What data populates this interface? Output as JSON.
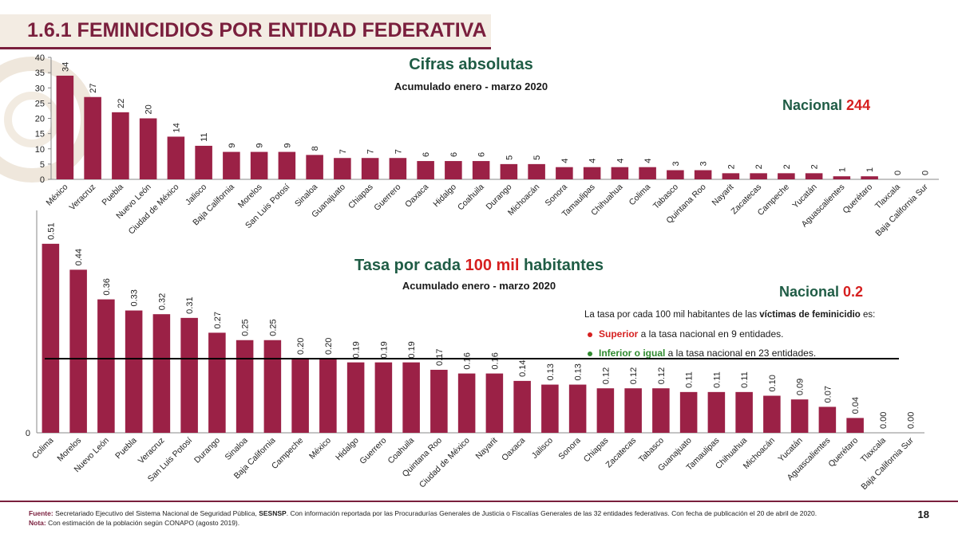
{
  "page": {
    "title": "1.6.1 FEMINICIDIOS POR ENTIDAD FEDERATIVA",
    "page_number": "18",
    "colors": {
      "bar": "#9b2146",
      "title": "#7a1f3d",
      "heading": "#1f5c45",
      "highlight": "#d62020",
      "green": "#2f8a2f"
    }
  },
  "top": {
    "heading": "Cifras absolutas",
    "subtitle": "Acumulado enero - marzo 2020",
    "national_label": "Nacional",
    "national_value": "244"
  },
  "bottom": {
    "heading_a": "Tasa por cada ",
    "heading_b": "100 mil",
    "heading_c": " habitantes",
    "subtitle": "Acumulado enero - marzo 2020",
    "national_label": "Nacional",
    "national_value": "0.2",
    "note_intro_a": "La tasa por cada 100 mil habitantes de las ",
    "note_intro_b": "víctimas de feminicidio",
    "note_intro_c": " es:",
    "note_sup_a": "Superior",
    "note_sup_b": " a la tasa nacional en 9 entidades.",
    "note_inf_a": "Inferior o igual",
    "note_inf_b": " a la tasa nacional en 23 entidades."
  },
  "footer": {
    "fuente_label": "Fuente:",
    "fuente_text_a": " Secretariado Ejecutivo del Sistema Nacional de Seguridad Pública, ",
    "fuente_text_b": "SESNSP",
    "fuente_text_c": ". Con información reportada por las Procuradurías Generales de Justicia o Fiscalías Generales de las 32 entidades federativas. Con fecha de publicación el 20  de abril de 2020.",
    "nota_label": "Nota:",
    "nota_text": " Con estimación de la población según CONAPO (agosto 2019)."
  },
  "chart_data": [
    {
      "type": "bar",
      "title": "Cifras absolutas",
      "subtitle": "Acumulado enero - marzo 2020",
      "categories": [
        "México",
        "Veracruz",
        "Puebla",
        "Nuevo León",
        "Ciudad de México",
        "Jalisco",
        "Baja California",
        "Morelos",
        "San Luis Potosí",
        "Sinaloa",
        "Guanajuato",
        "Chiapas",
        "Guerrero",
        "Oaxaca",
        "Hidalgo",
        "Coahuila",
        "Durango",
        "Michoacán",
        "Sonora",
        "Tamaulipas",
        "Chihuahua",
        "Colima",
        "Tabasco",
        "Quintana Roo",
        "Nayarit",
        "Zacatecas",
        "Campeche",
        "Yucatán",
        "Aguascalientes",
        "Querétaro",
        "Tlaxcala",
        "Baja California Sur"
      ],
      "values": [
        34,
        27,
        22,
        20,
        14,
        11,
        9,
        9,
        9,
        8,
        7,
        7,
        7,
        6,
        6,
        6,
        5,
        5,
        4,
        4,
        4,
        4,
        3,
        3,
        2,
        2,
        2,
        2,
        1,
        1,
        0,
        0
      ],
      "labels": [
        "34",
        "27",
        "22",
        "20",
        "14",
        "11",
        "9",
        "9",
        "9",
        "8",
        "7",
        "7",
        "7",
        "6",
        "6",
        "6",
        "5",
        "5",
        "4",
        "4",
        "4",
        "4",
        "3",
        "3",
        "2",
        "2",
        "2",
        "2",
        "1",
        "1",
        "0",
        "0"
      ],
      "yticks": [
        "0",
        "5",
        "10",
        "15",
        "20",
        "25",
        "30",
        "35",
        "40"
      ],
      "ylim": [
        0,
        40
      ]
    },
    {
      "type": "bar",
      "title": "Tasa por cada 100 mil habitantes",
      "subtitle": "Acumulado enero - marzo 2020",
      "categories": [
        "Colima",
        "Morelos",
        "Nuevo León",
        "Puebla",
        "Veracruz",
        "San Luis Potosí",
        "Durango",
        "Sinaloa",
        "Baja California",
        "Campeche",
        "México",
        "Hidalgo",
        "Guerrero",
        "Coahuila",
        "Quintana Roo",
        "Ciudad de México",
        "Nayarit",
        "Oaxaca",
        "Jalisco",
        "Sonora",
        "Chiapas",
        "Zacatecas",
        "Tabasco",
        "Guanajuato",
        "Tamaulipas",
        "Chihuahua",
        "Michoacán",
        "Yucatán",
        "Aguascalientes",
        "Querétaro",
        "Tlaxcala",
        "Baja California Sur"
      ],
      "values": [
        0.51,
        0.44,
        0.36,
        0.33,
        0.32,
        0.31,
        0.27,
        0.25,
        0.25,
        0.2,
        0.2,
        0.19,
        0.19,
        0.19,
        0.17,
        0.16,
        0.16,
        0.14,
        0.13,
        0.13,
        0.12,
        0.12,
        0.12,
        0.11,
        0.11,
        0.11,
        0.1,
        0.09,
        0.07,
        0.04,
        0.0,
        0.0
      ],
      "labels": [
        "0.51",
        "0.44",
        "0.36",
        "0.33",
        "0.32",
        "0.31",
        "0.27",
        "0.25",
        "0.25",
        "0.20",
        "0.20",
        "0.19",
        "0.19",
        "0.19",
        "0.17",
        "0.16",
        "0.16",
        "0.14",
        "0.13",
        "0.13",
        "0.12",
        "0.12",
        "0.12",
        "0.11",
        "0.11",
        "0.11",
        "0.10",
        "0.09",
        "0.07",
        "0.04",
        "0.00",
        "0.00"
      ],
      "yticks": [
        "0"
      ],
      "ylim": [
        0,
        0.6
      ],
      "reference_line": 0.2
    }
  ]
}
